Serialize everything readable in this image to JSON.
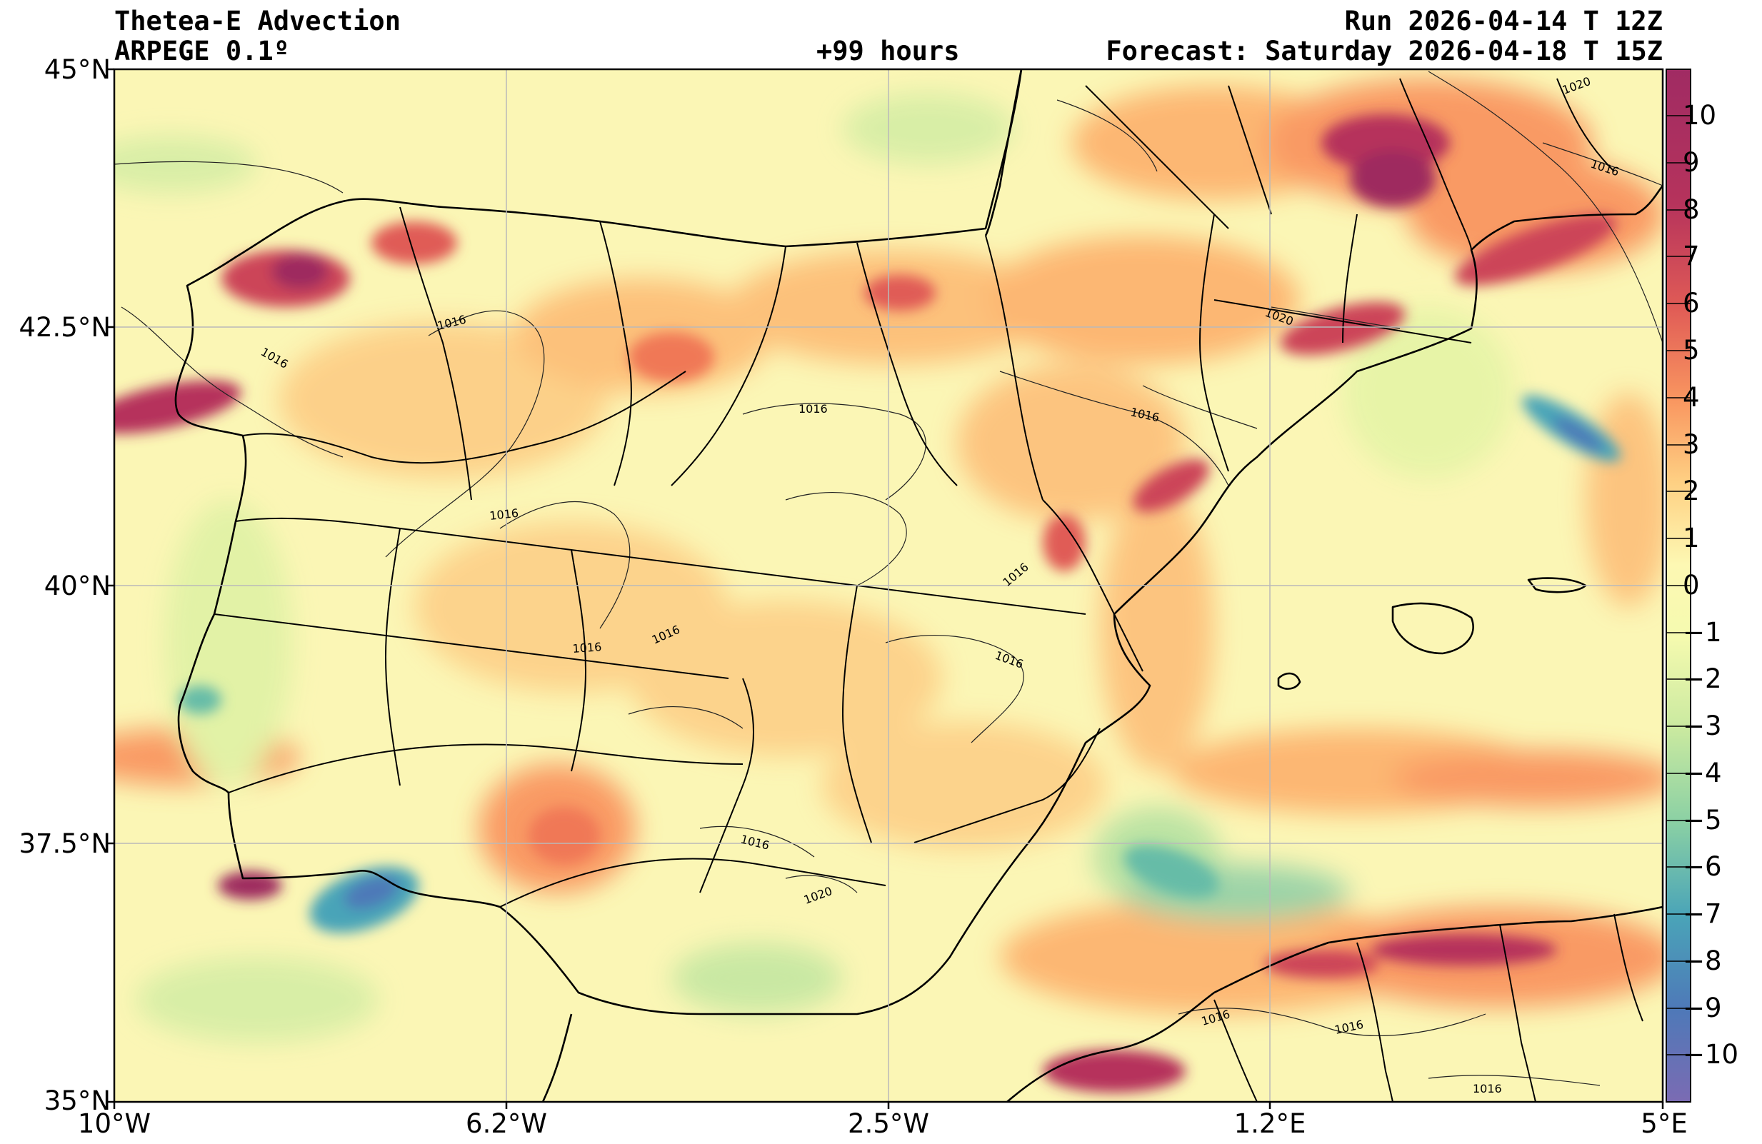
{
  "header": {
    "title": "Thetea-E Advection",
    "model": "ARPEGE 0.1º",
    "lead": "+99 hours",
    "run": "Run 2026-04-14 T 12Z",
    "forecast": "Forecast: Saturday 2026-04-18 T 15Z"
  },
  "axes": {
    "lat_labels": [
      "45°N",
      "42.5°N",
      "40°N",
      "37.5°N",
      "35°N"
    ],
    "lon_labels": [
      "10°W",
      "6.2°W",
      "2.5°W",
      "1.2°E",
      "5°E"
    ],
    "lon_range": [
      -10,
      5
    ],
    "lat_range": [
      35,
      45
    ]
  },
  "colorbar": {
    "ticks": [
      "10",
      "9",
      "8",
      "7",
      "6",
      "5",
      "4",
      "3",
      "2",
      "1",
      "0",
      "−1",
      "−2",
      "−3",
      "−4",
      "−5",
      "−6",
      "−7",
      "−8",
      "−9",
      "−10"
    ],
    "range": [
      -11,
      11
    ],
    "colors": [
      "#7b6bb3",
      "#4e79b8",
      "#3d8fbe",
      "#4aa4b8",
      "#66bca7",
      "#8ad0a4",
      "#abdda2",
      "#c9e9a0",
      "#e5f4a5",
      "#f5faaf",
      "#fdf8b3",
      "#fee99a",
      "#fed083",
      "#fdb46f",
      "#f99660",
      "#f07857",
      "#e05b56",
      "#cc4459",
      "#b6335c",
      "#9e2a5f",
      "#b03a78"
    ]
  },
  "contours": {
    "labels": [
      "1016",
      "1016",
      "1016",
      "1016",
      "1016",
      "1016",
      "1016",
      "1016",
      "1016",
      "1016",
      "1016",
      "1016",
      "1016",
      "1020",
      "1020",
      "1020",
      "1016"
    ]
  }
}
